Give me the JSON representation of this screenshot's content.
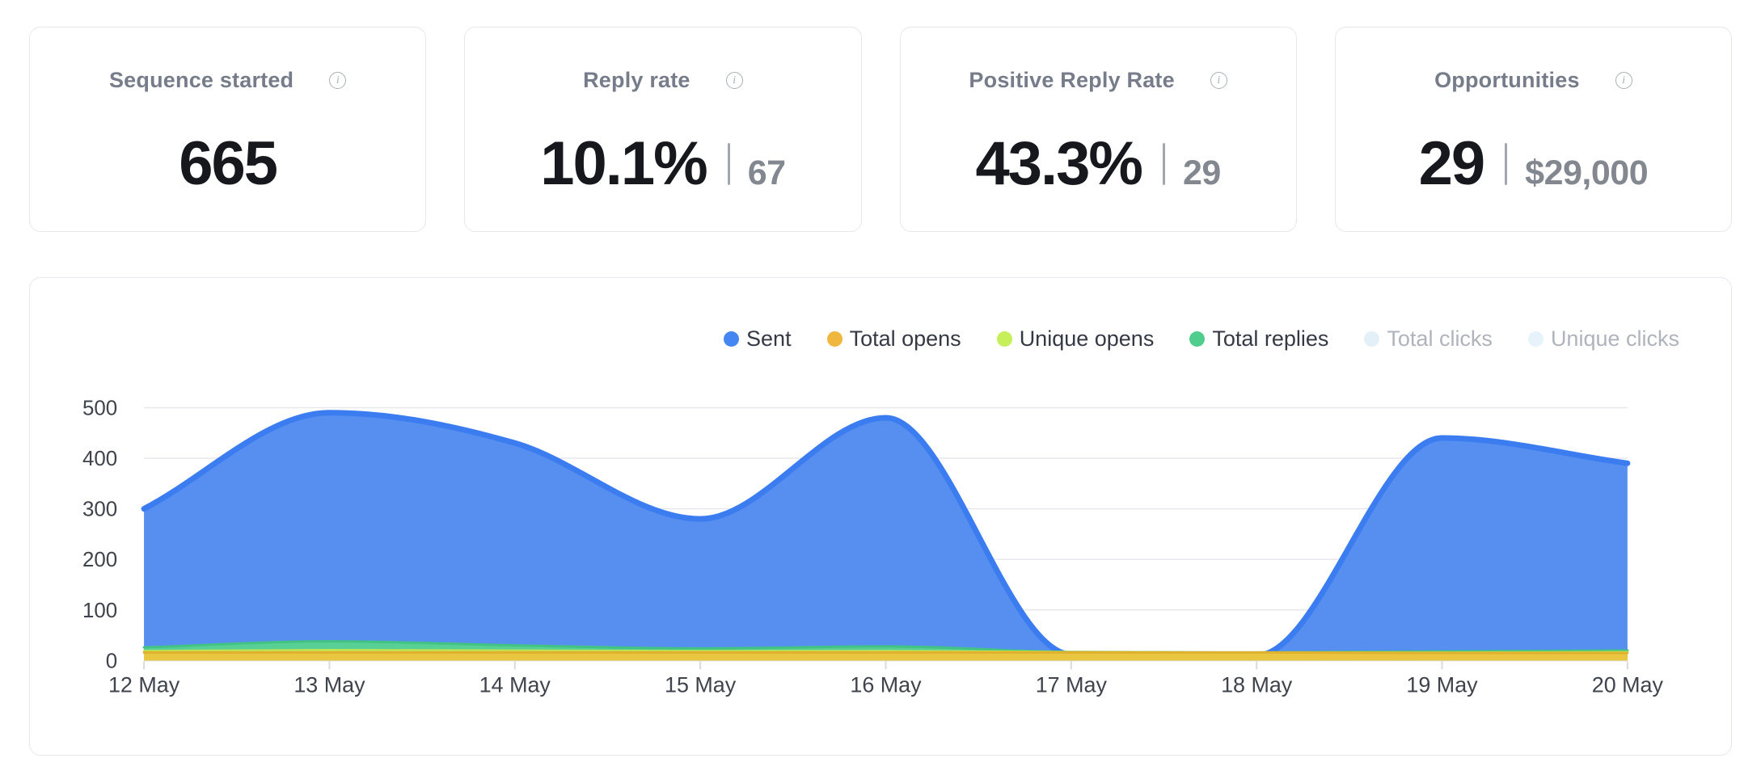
{
  "stat_cards": [
    {
      "label": "Sequence started",
      "value": "665",
      "secondary": ""
    },
    {
      "label": "Reply rate",
      "value": "10.1%",
      "secondary": "67"
    },
    {
      "label": "Positive Reply Rate",
      "value": "43.3%",
      "secondary": "29"
    },
    {
      "label": "Opportunities",
      "value": "29",
      "secondary": "$29,000"
    }
  ],
  "chart_data": {
    "type": "area",
    "x": [
      "12 May",
      "13 May",
      "14 May",
      "15 May",
      "16 May",
      "17 May",
      "18 May",
      "19 May",
      "20 May"
    ],
    "yticks": [
      0,
      100,
      200,
      300,
      400,
      500
    ],
    "ylim": [
      0,
      500
    ],
    "grid": true,
    "legend_position": "top-right",
    "series": [
      {
        "name": "Sent",
        "enabled": true,
        "dot_color": "#4486F2",
        "fill": "#568FEF",
        "stroke": "#3B7CF0",
        "stroke_width": 7,
        "values": [
          300,
          490,
          430,
          280,
          480,
          12,
          10,
          440,
          390
        ]
      },
      {
        "name": "Total opens",
        "enabled": true,
        "dot_color": "#EFB73E",
        "fill": "#EAC53F",
        "stroke": "#E0B02F",
        "stroke_width": 3,
        "values": [
          16,
          16,
          16,
          16,
          16,
          16,
          16,
          15,
          15
        ]
      },
      {
        "name": "Unique opens",
        "enabled": true,
        "dot_color": "#C6EF5A",
        "fill": "#C9EB66",
        "stroke": "#BFE44F",
        "stroke_width": 2.5,
        "values": [
          19,
          21,
          20,
          19,
          19,
          17,
          16,
          16,
          17
        ]
      },
      {
        "name": "Total replies",
        "enabled": true,
        "dot_color": "#4ECD8D",
        "fill": "#58D095",
        "stroke": "#43C383",
        "stroke_width": 3,
        "values": [
          26,
          38,
          30,
          24,
          28,
          17,
          16,
          18,
          20
        ]
      },
      {
        "name": "Total clicks",
        "enabled": false,
        "dot_color": "#E3F0F8",
        "fill": "",
        "stroke": "",
        "stroke_width": 0,
        "values": []
      },
      {
        "name": "Unique clicks",
        "enabled": false,
        "dot_color": "#E6F3FA",
        "fill": "",
        "stroke": "",
        "stroke_width": 0,
        "values": []
      }
    ],
    "draw_order": [
      0,
      3,
      2,
      1
    ],
    "colors": {
      "gridline": "#E8E8EC",
      "baseline": "#DFDFE4",
      "tick": "#D9D9DE",
      "axis_text": "#3E434C"
    }
  }
}
